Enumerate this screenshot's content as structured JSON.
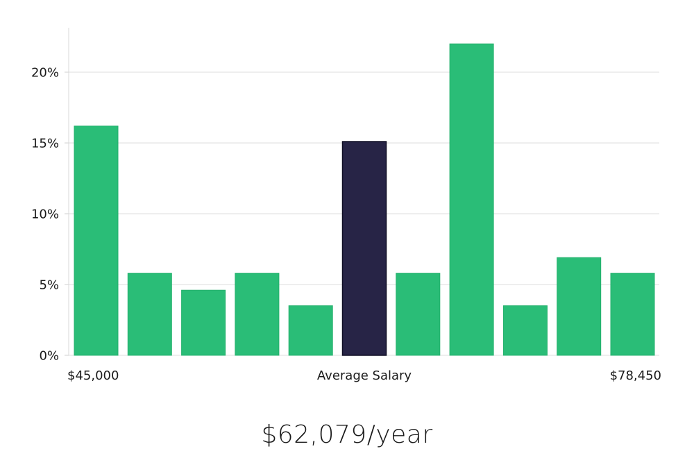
{
  "chart_data": {
    "type": "bar",
    "values": [
      16.2,
      5.8,
      4.6,
      5.8,
      3.5,
      15.1,
      5.8,
      22.0,
      3.5,
      6.9,
      5.8
    ],
    "highlight_index": 5,
    "yticks": [
      0,
      5,
      10,
      15,
      20
    ],
    "ytick_labels": [
      "0%",
      "5%",
      "10%",
      "15%",
      "20%"
    ],
    "ylim": [
      0,
      23
    ],
    "x_left_label": "$45,000",
    "x_center_label": "Average Salary",
    "x_right_label": "$78,450",
    "bar_color": "#2abd77",
    "highlight_color": "#272446",
    "highlight_edge_color": "#0f0d24",
    "grid": true
  },
  "headline": "$62,079/year"
}
